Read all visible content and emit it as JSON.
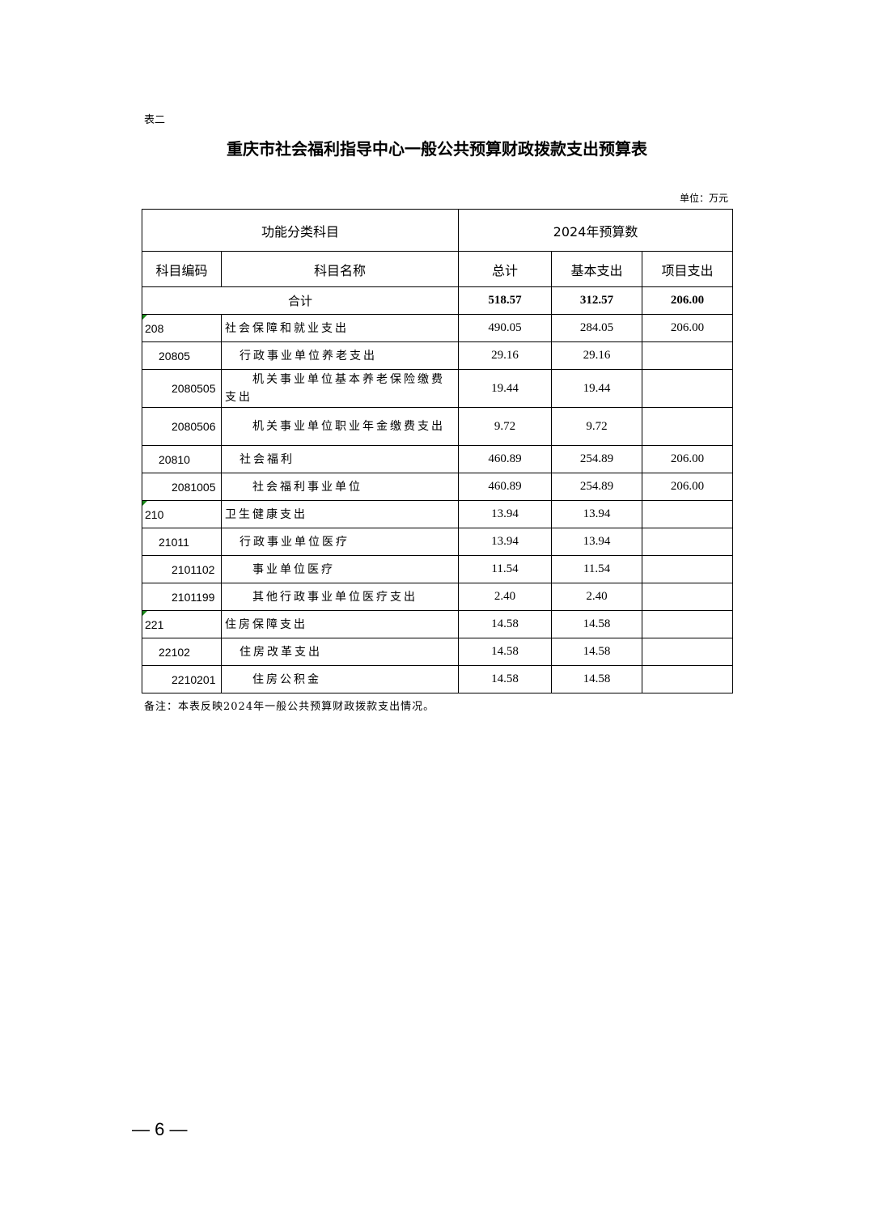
{
  "doc": {
    "label": "表二",
    "title": "重庆市社会福利指导中心一般公共预算财政拨款支出预算表",
    "unit": "单位：万元",
    "note": "备注：本表反映2024年一般公共预算财政拨款支出情况。",
    "page_number": "— 6 —"
  },
  "table": {
    "group_headers": [
      "功能分类科目",
      "2024年预算数"
    ],
    "columns": [
      "科目编码",
      "科目名称",
      "总计",
      "基本支出",
      "项目支出"
    ],
    "total": {
      "label": "合计",
      "total": "518.57",
      "basic": "312.57",
      "project": "206.00"
    },
    "rows": [
      {
        "code": "208",
        "name": "社会保障和就业支出",
        "total": "490.05",
        "basic": "284.05",
        "project": "206.00",
        "level": 1
      },
      {
        "code": "20805",
        "name": "行政事业单位养老支出",
        "total": "29.16",
        "basic": "29.16",
        "project": "",
        "level": 2
      },
      {
        "code": "2080505",
        "name": "机关事业单位基本养老保险缴费支出",
        "total": "19.44",
        "basic": "19.44",
        "project": "",
        "level": 3
      },
      {
        "code": "2080506",
        "name": "机关事业单位职业年金缴费支出",
        "total": "9.72",
        "basic": "9.72",
        "project": "",
        "level": 3
      },
      {
        "code": "20810",
        "name": "社会福利",
        "total": "460.89",
        "basic": "254.89",
        "project": "206.00",
        "level": 2
      },
      {
        "code": "2081005",
        "name": "社会福利事业单位",
        "total": "460.89",
        "basic": "254.89",
        "project": "206.00",
        "level": 3
      },
      {
        "code": "210",
        "name": "卫生健康支出",
        "total": "13.94",
        "basic": "13.94",
        "project": "",
        "level": 1
      },
      {
        "code": "21011",
        "name": "行政事业单位医疗",
        "total": "13.94",
        "basic": "13.94",
        "project": "",
        "level": 2
      },
      {
        "code": "2101102",
        "name": "事业单位医疗",
        "total": "11.54",
        "basic": "11.54",
        "project": "",
        "level": 3
      },
      {
        "code": "2101199",
        "name": "其他行政事业单位医疗支出",
        "total": "2.40",
        "basic": "2.40",
        "project": "",
        "level": 3
      },
      {
        "code": "221",
        "name": "住房保障支出",
        "total": "14.58",
        "basic": "14.58",
        "project": "",
        "level": 1
      },
      {
        "code": "22102",
        "name": "住房改革支出",
        "total": "14.58",
        "basic": "14.58",
        "project": "",
        "level": 2
      },
      {
        "code": "2210201",
        "name": "住房公积金",
        "total": "14.58",
        "basic": "14.58",
        "project": "",
        "level": 3
      }
    ]
  }
}
